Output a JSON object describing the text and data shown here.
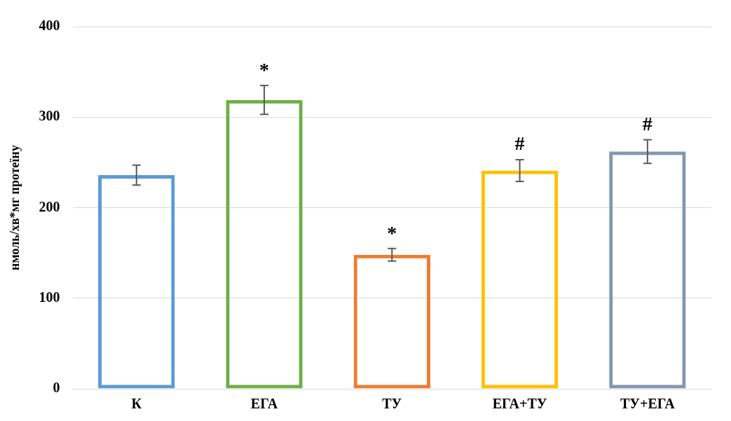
{
  "chart_data": {
    "type": "bar",
    "ylabel": "нмоль/хв*мг протеїну",
    "categories": [
      "К",
      "ЕГА",
      "ТУ",
      "ЕГА+ТУ",
      "ТУ+ЕГА"
    ],
    "values": [
      236,
      319,
      148,
      241,
      262
    ],
    "errors": [
      11,
      16,
      7,
      12,
      13
    ],
    "colors": [
      "#5b9bd5",
      "#70ad47",
      "#ed7d31",
      "#ffc000",
      "#8497b0"
    ],
    "ylim": [
      0,
      400
    ],
    "yticks": [
      0,
      100,
      200,
      300,
      400
    ],
    "grid": "y",
    "annotations": [
      {
        "text": "*",
        "x": "ЕГА",
        "y": 335
      },
      {
        "text": "*",
        "x": "ТУ",
        "y": 155
      },
      {
        "text": "#",
        "x": "ЕГА+ТУ",
        "y": 254
      },
      {
        "text": "#",
        "x": "ТУ+ЕГА",
        "y": 276
      }
    ]
  }
}
